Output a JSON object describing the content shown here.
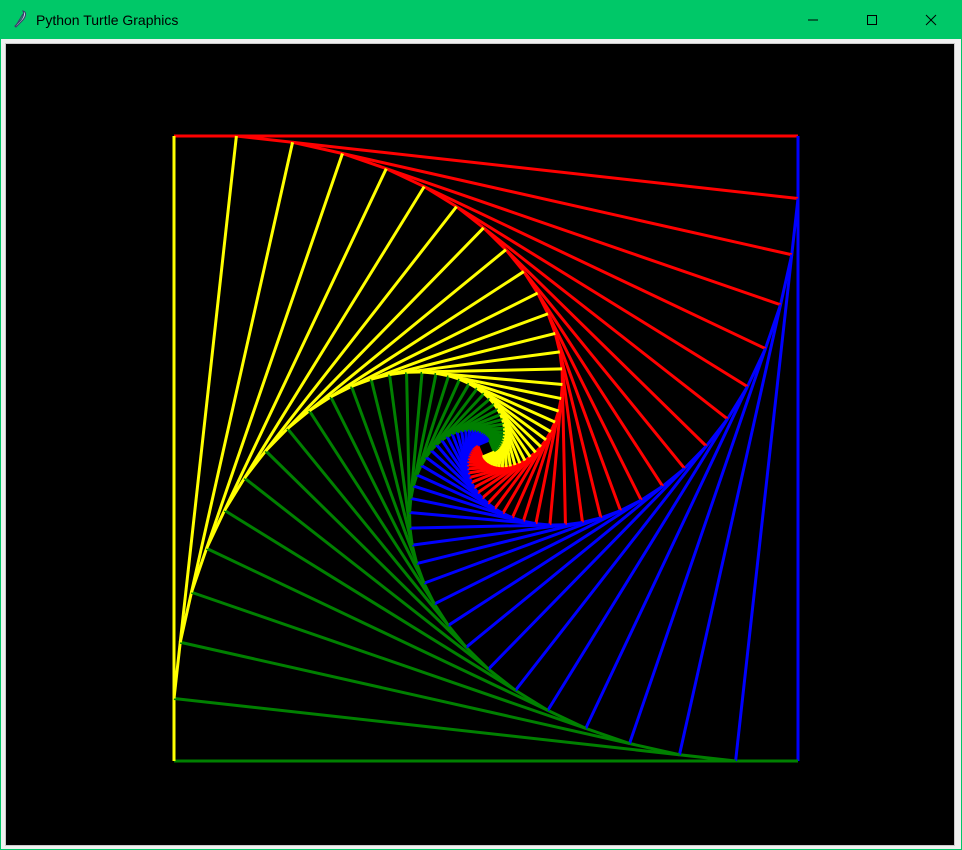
{
  "window": {
    "title": "Python Turtle Graphics",
    "icon": "feather-icon"
  },
  "controls": {
    "minimize_icon": "minimize-icon",
    "maximize_icon": "maximize-icon",
    "close_icon": "close-icon"
  },
  "canvas": {
    "background": "#000000",
    "drawing": "square spiral",
    "pen_width": 3,
    "colors": [
      "#ff0000",
      "#0000ff",
      "#008000",
      "#ffff00"
    ],
    "color_names": [
      "red",
      "blue",
      "green",
      "yellow"
    ],
    "steps": 40,
    "turn_fraction": 0.1
  }
}
